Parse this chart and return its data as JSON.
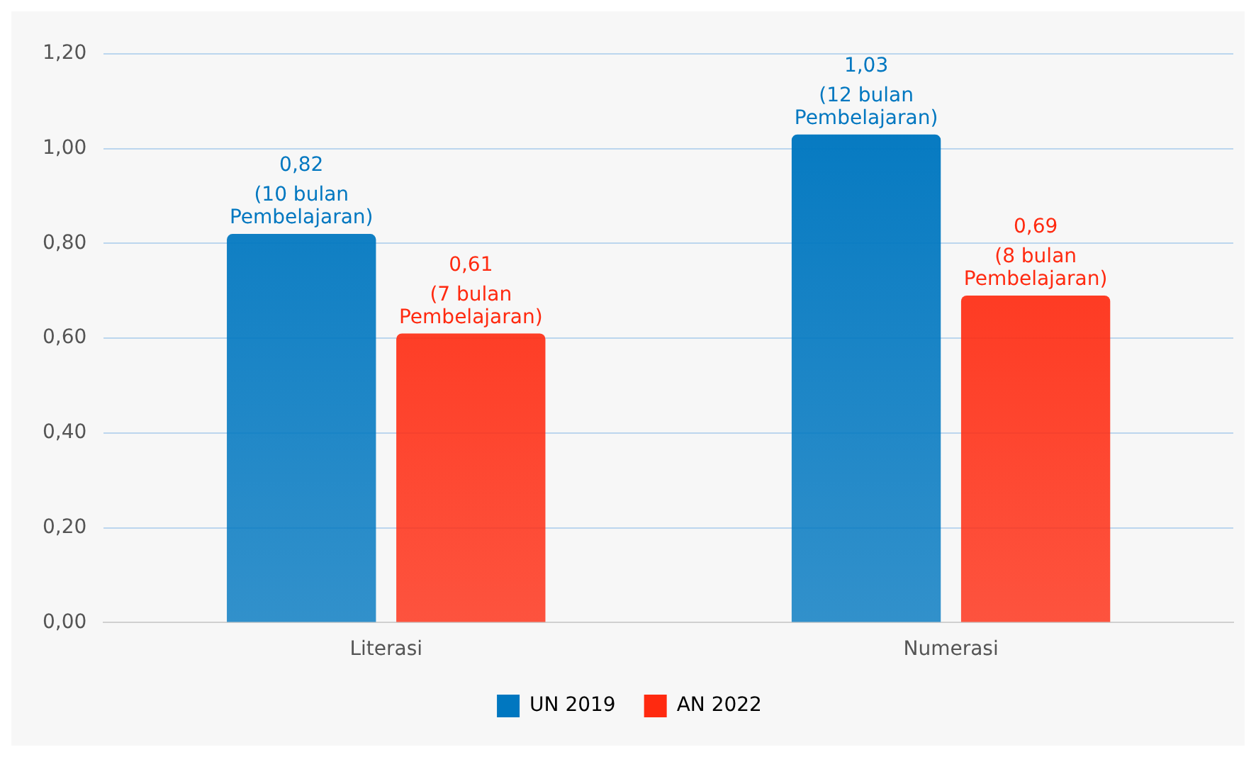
{
  "chart_data": {
    "type": "bar",
    "categories": [
      "Literasi",
      "Numerasi"
    ],
    "series": [
      {
        "name": "UN 2019",
        "color": "#0077c0",
        "values": [
          0.82,
          1.03
        ],
        "value_labels": [
          "0,82\n(10 bulan\nPembelajaran)",
          "1,03\n(12 bulan\nPembelajaran)"
        ]
      },
      {
        "name": "AN 2022",
        "color": "#ff2a10",
        "values": [
          0.61,
          0.69
        ],
        "value_labels": [
          "0,61\n(7 bulan\nPembelajaran)",
          "0,69\n(8 bulan\nPembelajaran)"
        ]
      }
    ],
    "ylim": [
      0,
      1.2
    ],
    "yticks": [
      {
        "value": 0,
        "label": "0,00"
      },
      {
        "value": 0.2,
        "label": "0,20"
      },
      {
        "value": 0.4,
        "label": "0,40"
      },
      {
        "value": 0.6,
        "label": "0,60"
      },
      {
        "value": 0.8,
        "label": "0,80"
      },
      {
        "value": 1,
        "label": "1,00"
      },
      {
        "value": 1.2,
        "label": "1,20"
      }
    ],
    "grid": "y",
    "legend": "bottom"
  }
}
